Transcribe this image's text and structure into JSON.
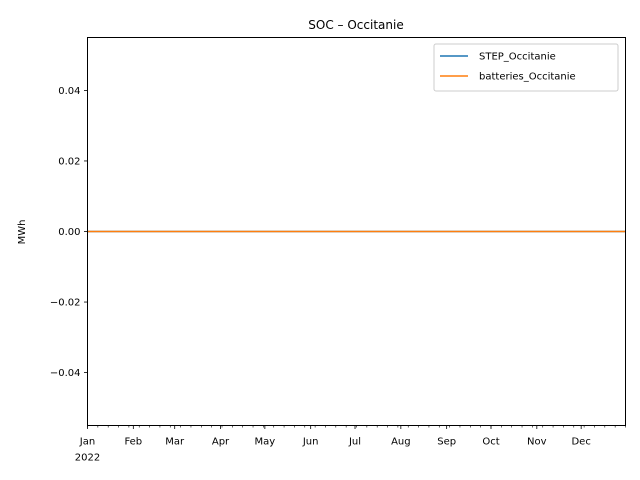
{
  "chart_data": {
    "type": "line",
    "title": "SOC – Occitanie",
    "xlabel": "",
    "ylabel": "MWh",
    "x_range": [
      "2022-01-01",
      "2022-12-31"
    ],
    "ylim": [
      -0.055,
      0.055
    ],
    "y_ticks": [
      -0.04,
      -0.02,
      0.0,
      0.02,
      0.04
    ],
    "y_tick_labels": [
      "−0.04",
      "−0.02",
      "0.00",
      "0.02",
      "0.04"
    ],
    "x_ticks": [
      {
        "date": "2022-01-01",
        "label": "Jan"
      },
      {
        "date": "2022-02-01",
        "label": "Feb"
      },
      {
        "date": "2022-03-01",
        "label": "Mar"
      },
      {
        "date": "2022-04-01",
        "label": "Apr"
      },
      {
        "date": "2022-05-01",
        "label": "May"
      },
      {
        "date": "2022-06-01",
        "label": "Jun"
      },
      {
        "date": "2022-07-01",
        "label": "Jul"
      },
      {
        "date": "2022-08-01",
        "label": "Aug"
      },
      {
        "date": "2022-09-01",
        "label": "Sep"
      },
      {
        "date": "2022-10-01",
        "label": "Oct"
      },
      {
        "date": "2022-11-01",
        "label": "Nov"
      },
      {
        "date": "2022-12-01",
        "label": "Dec"
      }
    ],
    "x_year_label": "2022",
    "grid": false,
    "legend_position": "top-right",
    "series": [
      {
        "name": "STEP_Occitanie",
        "color": "#1f77b4",
        "points": [
          [
            "2022-01-01",
            0.0
          ],
          [
            "2022-12-31",
            0.0
          ]
        ]
      },
      {
        "name": "batteries_Occitanie",
        "color": "#ff7f0e",
        "points": [
          [
            "2022-01-01",
            0.0
          ],
          [
            "2022-12-31",
            0.0
          ]
        ]
      }
    ]
  }
}
